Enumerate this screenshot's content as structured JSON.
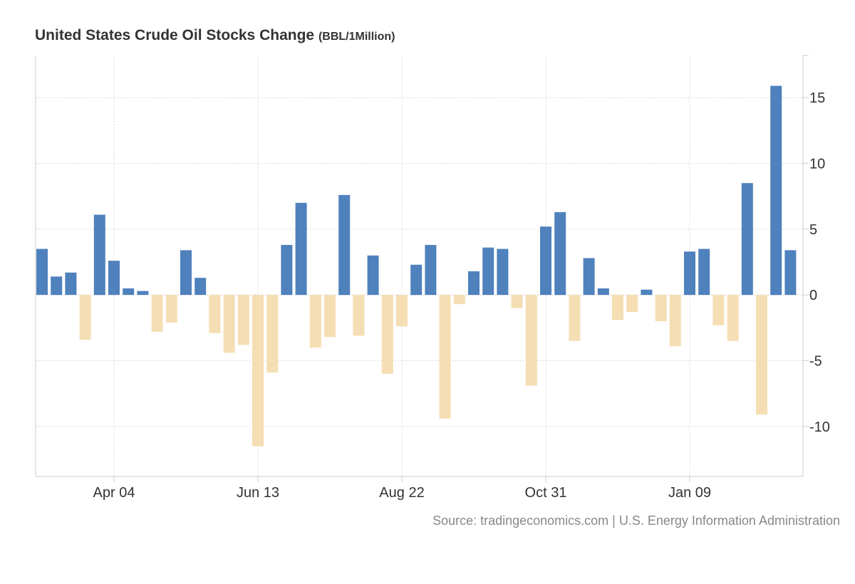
{
  "header": {
    "title": "United States Crude Oil Stocks Change",
    "unit": "(BBL/1Million)"
  },
  "footer": {
    "source": "Source: tradingeconomics.com | U.S. Energy Information Administration"
  },
  "colors": {
    "positive": "#4f81bd",
    "negative": "#f5deb3",
    "grid": "#d9d9d9",
    "axis": "#cccccc",
    "tick_text": "#333333"
  },
  "chart_data": {
    "type": "bar",
    "title": "United States Crude Oil Stocks Change",
    "ylabel": "BBL/1Million",
    "ylim": [
      -13.8,
      18.2
    ],
    "yticks": [
      15,
      10,
      5,
      0,
      -5,
      -10
    ],
    "x_tick_labels": [
      {
        "label": "Apr 04",
        "index": 5
      },
      {
        "label": "Jun 13",
        "index": 15
      },
      {
        "label": "Aug 22",
        "index": 25
      },
      {
        "label": "Oct 31",
        "index": 35
      },
      {
        "label": "Jan 09",
        "index": 45
      }
    ],
    "grid": true,
    "values": [
      3.5,
      1.4,
      1.7,
      -3.4,
      6.1,
      2.6,
      0.5,
      0.3,
      -2.8,
      -2.1,
      3.4,
      1.3,
      -2.9,
      -4.4,
      -3.8,
      -11.5,
      -5.9,
      3.8,
      7.0,
      -4.0,
      -3.2,
      7.6,
      -3.1,
      3.0,
      -6.0,
      -2.4,
      2.3,
      3.8,
      -9.4,
      -0.7,
      1.8,
      3.6,
      3.5,
      -1.0,
      -6.9,
      5.2,
      6.3,
      -3.5,
      2.8,
      0.5,
      -1.9,
      -1.3,
      0.4,
      -2.0,
      -3.9,
      3.3,
      3.5,
      -2.3,
      -3.5,
      8.5,
      -9.1,
      15.9,
      3.4
    ]
  }
}
